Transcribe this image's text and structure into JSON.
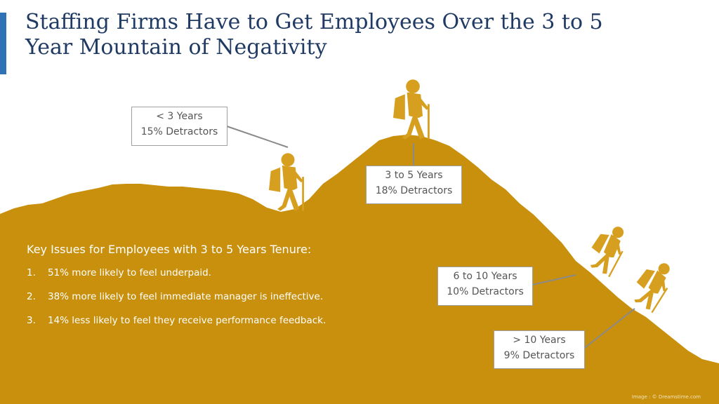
{
  "slide": {
    "title_line1": "Staffing Firms Have to Get Employees Over the 3 to 5",
    "title_line2": "Year Mountain of Negativity",
    "accent_color": "#2f73b6",
    "mountain_color": "#c8900d",
    "hiker_color": "#d79f1f"
  },
  "callouts": [
    {
      "line1": "< 3 Years",
      "line2": "15% Detractors"
    },
    {
      "line1": "3 to 5 Years",
      "line2": "18% Detractors"
    },
    {
      "line1": "6 to 10 Years",
      "line2": "10% Detractors"
    },
    {
      "line1": "> 10 Years",
      "line2": "9% Detractors"
    }
  ],
  "issues": {
    "heading": "Key Issues for Employees with 3 to 5 Years Tenure:",
    "items": [
      {
        "num": "1.",
        "text": "51% more likely to feel underpaid."
      },
      {
        "num": "2.",
        "text": "38% more likely to feel immediate manager is ineffective."
      },
      {
        "num": "3.",
        "text": "14% less likely to feel they receive performance feedback."
      }
    ]
  },
  "credit": "Image : © Dreamstime.com",
  "icons": [
    "hiker-icon",
    "mountain-silhouette"
  ]
}
